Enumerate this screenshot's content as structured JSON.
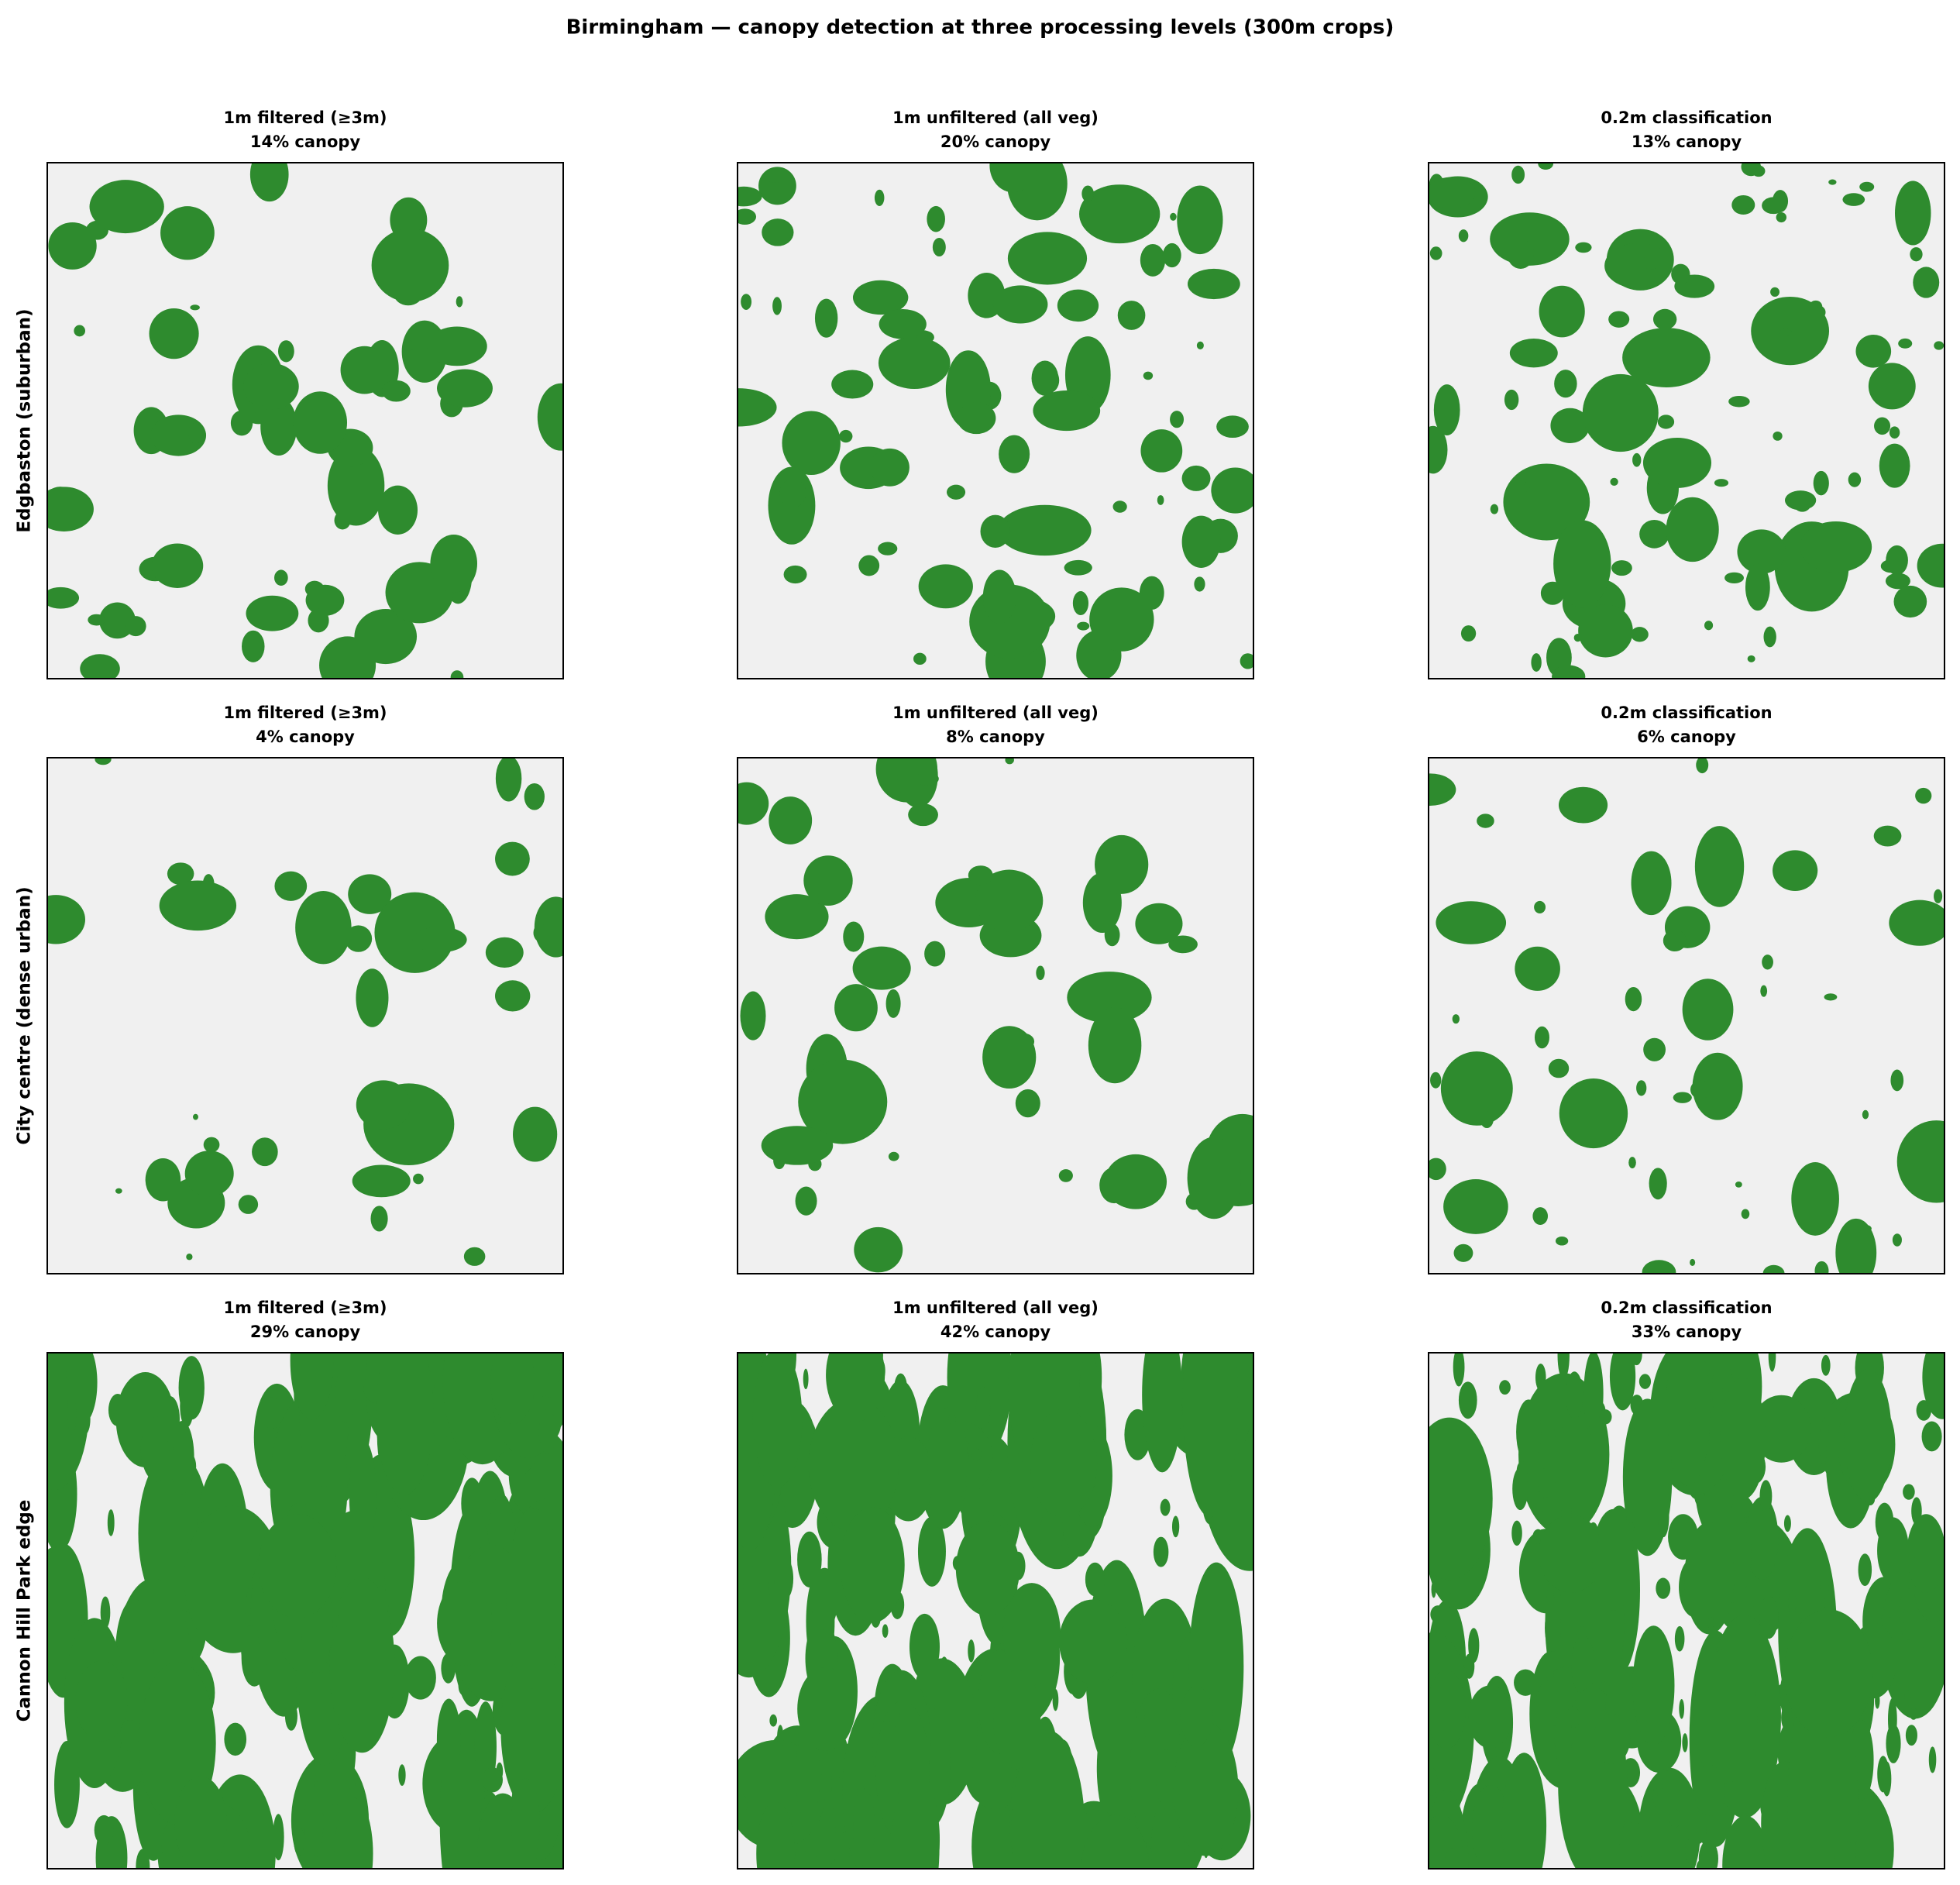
{
  "title": "Birmingham — canopy detection at three processing levels (300m crops)",
  "rows": [
    {
      "label": "Edgbaston (suburban)",
      "panels": [
        {
          "method": "1m filtered (≥3m)",
          "canopy": "14% canopy"
        },
        {
          "method": "1m unfiltered (all veg)",
          "canopy": "20% canopy"
        },
        {
          "method": "0.2m classification",
          "canopy": "13% canopy"
        }
      ]
    },
    {
      "label": "City centre (dense urban)",
      "panels": [
        {
          "method": "1m filtered (≥3m)",
          "canopy": "4% canopy"
        },
        {
          "method": "1m unfiltered (all veg)",
          "canopy": "8% canopy"
        },
        {
          "method": "0.2m classification",
          "canopy": "6% canopy"
        }
      ]
    },
    {
      "label": "Cannon Hill Park edge",
      "panels": [
        {
          "method": "1m filtered (≥3m)",
          "canopy": "29% canopy"
        },
        {
          "method": "1m unfiltered (all veg)",
          "canopy": "42% canopy"
        },
        {
          "method": "0.2m classification",
          "canopy": "33% canopy"
        }
      ]
    }
  ]
}
